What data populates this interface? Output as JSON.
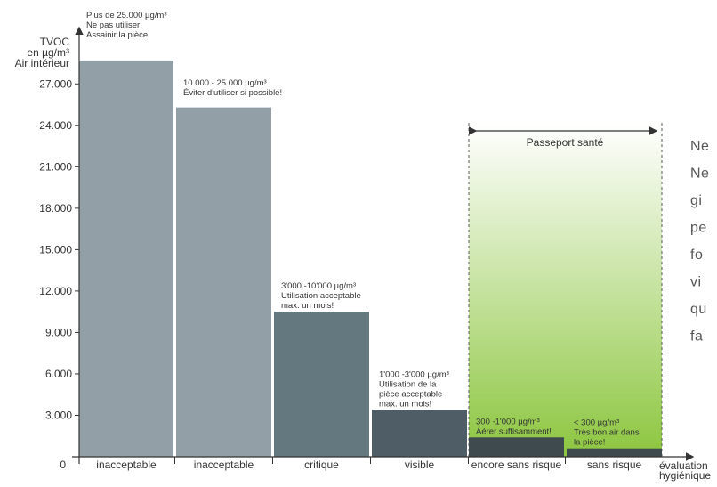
{
  "chart_data": {
    "type": "bar",
    "ylabel_lines": [
      "TVOC",
      "en µg/m³",
      "Air intérieur"
    ],
    "xlabel_lines": [
      "évaluation",
      "hygiénique"
    ],
    "origin_label": "0",
    "ylim": [
      0,
      30500
    ],
    "yticks": [
      3000,
      6000,
      9000,
      12000,
      15000,
      18000,
      21000,
      24000,
      27000
    ],
    "ytick_labels": [
      "3.000",
      "6.000",
      "9.000",
      "12.000",
      "15.000",
      "18.000",
      "21.000",
      "24.000",
      "27.000"
    ],
    "categories": [
      "inacceptable",
      "inacceptable",
      "critique",
      "visible",
      "encore sans risque",
      "sans risque"
    ],
    "values": [
      28700,
      25300,
      10500,
      3400,
      1400,
      600
    ],
    "bar_colors": [
      "#939fa7",
      "#939fa7",
      "#647880",
      "#4f5e66",
      "#3f4a4f",
      "#3f4a4f"
    ],
    "annotations": [
      [
        "Plus de 25.000 µg/m³",
        "Ne pas utiliser!",
        "Assainir la pièce!"
      ],
      [
        "10.000 - 25.000 µg/m³",
        "Éviter d'utiliser si possible!"
      ],
      [
        "3'000 -10'000 µg/m³",
        "Utilisation acceptable",
        "max. un mois!"
      ],
      [
        "1'000 -3'000 µg/m³",
        "Utilisation de la",
        "pièce acceptable",
        "max. un mois!"
      ],
      [
        "300 -1'000 µg/m³",
        "Aérer suffisamment!"
      ],
      [
        "< 300 µg/m³",
        "Très bon air dans",
        "la pièce!"
      ]
    ],
    "passport_label": "Passeport santé",
    "passport_gradient": [
      "#ffffff",
      "#8cc63f"
    ],
    "grid": false
  },
  "side_text": [
    "Ne",
    "Ne",
    "gi",
    "pe",
    "fo",
    "vi",
    "qu",
    "fa"
  ]
}
